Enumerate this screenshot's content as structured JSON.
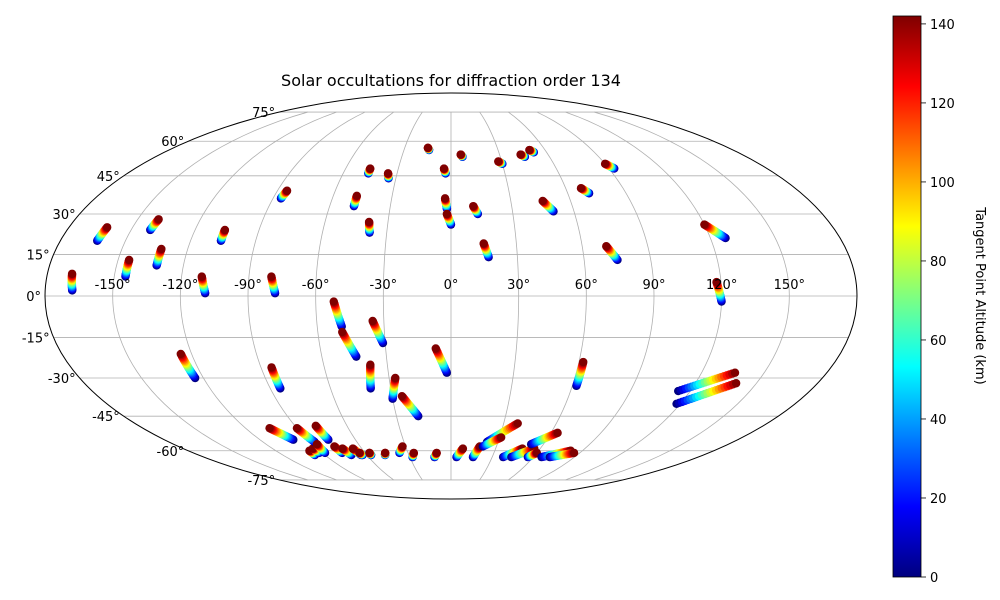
{
  "chart_data": {
    "type": "scatter",
    "projection": "Mollweide (Hammer-style)",
    "title": "Solar occultations for diffraction order 134",
    "grid": true,
    "lon_ticks": [
      -150,
      -120,
      -90,
      -60,
      -30,
      0,
      30,
      60,
      90,
      120,
      150
    ],
    "lon_tick_labels": [
      "-150°",
      "-120°",
      "-90°",
      "-60°",
      "-30°",
      "0°",
      "30°",
      "60°",
      "90°",
      "120°",
      "150°"
    ],
    "lat_ticks": [
      75,
      60,
      45,
      30,
      15,
      0,
      -15,
      -30,
      -45,
      -60,
      -75
    ],
    "lat_tick_labels": [
      "75°",
      "60°",
      "45°",
      "30°",
      "15°",
      "0°",
      "-15°",
      "-30°",
      "-45°",
      "-60°",
      "-75°"
    ],
    "colorbar": {
      "label": "Tangent Point Altitude (km)",
      "colormap": "jet",
      "min": 0,
      "max": 142,
      "ticks": [
        0,
        20,
        40,
        60,
        80,
        100,
        120,
        140
      ],
      "tick_labels": [
        "0",
        "20",
        "40",
        "60",
        "80",
        "100",
        "120",
        "140"
      ]
    },
    "altitude_range_km": [
      0,
      142
    ],
    "occultations": [
      {
        "lon_start": -169,
        "lat_start": 8,
        "lon_end": -168,
        "lat_end": 2
      },
      {
        "lon_start": -162,
        "lat_start": 25,
        "lon_end": -163,
        "lat_end": 20
      },
      {
        "lon_start": -145,
        "lat_start": 13,
        "lon_end": -145,
        "lat_end": 7
      },
      {
        "lon_start": -140,
        "lat_start": 28,
        "lon_end": -141,
        "lat_end": 24
      },
      {
        "lon_start": -132,
        "lat_start": 17,
        "lon_end": -132,
        "lat_end": 11
      },
      {
        "lon_start": -125,
        "lat_start": -21,
        "lon_end": -124,
        "lat_end": -30
      },
      {
        "lon_start": -111,
        "lat_start": 7,
        "lon_end": -109,
        "lat_end": 1
      },
      {
        "lon_start": -106,
        "lat_start": 24,
        "lon_end": -106,
        "lat_end": 20
      },
      {
        "lon_start": -85,
        "lat_start": -26,
        "lon_end": -85,
        "lat_end": -34
      },
      {
        "lon_start": -85,
        "lat_start": 39,
        "lon_end": -86,
        "lat_end": 36
      },
      {
        "lon_start": -80,
        "lat_start": 7,
        "lon_end": -78,
        "lat_end": 1
      },
      {
        "lon_start": -48,
        "lat_start": 37,
        "lon_end": -48,
        "lat_end": 33
      },
      {
        "lon_start": -46,
        "lat_start": 48,
        "lon_end": -46,
        "lat_end": 46
      },
      {
        "lon_start": -52,
        "lat_start": -2,
        "lon_end": -49,
        "lat_end": -11
      },
      {
        "lon_start": -49,
        "lat_start": -13,
        "lon_end": -44,
        "lat_end": -22
      },
      {
        "lon_start": -38,
        "lat_start": -25,
        "lon_end": -40,
        "lat_end": -34
      },
      {
        "lon_start": -39,
        "lat_start": 27,
        "lon_end": -38,
        "lat_end": 23
      },
      {
        "lon_start": -35,
        "lat_start": 46,
        "lon_end": -34,
        "lat_end": 44
      },
      {
        "lon_start": -35,
        "lat_start": -9,
        "lon_end": -31,
        "lat_end": -17
      },
      {
        "lon_start": -27,
        "lat_start": -30,
        "lon_end": -30,
        "lat_end": -38
      },
      {
        "lon_start": -25,
        "lat_start": -37,
        "lon_end": -18,
        "lat_end": -45
      },
      {
        "lon_start": -15,
        "lat_start": 57,
        "lon_end": -14,
        "lat_end": 56
      },
      {
        "lon_start": -4,
        "lat_start": 48,
        "lon_end": -3,
        "lat_end": 46
      },
      {
        "lon_start": -3,
        "lat_start": 36,
        "lon_end": -2,
        "lat_end": 32
      },
      {
        "lon_start": -2,
        "lat_start": 30,
        "lon_end": 0,
        "lat_end": 26
      },
      {
        "lon_start": -7,
        "lat_start": -19,
        "lon_end": -2,
        "lat_end": -28
      },
      {
        "lon_start": 6,
        "lat_start": 54,
        "lon_end": 7,
        "lat_end": 53
      },
      {
        "lon_start": 11,
        "lat_start": 33,
        "lon_end": 13,
        "lat_end": 30
      },
      {
        "lon_start": 15,
        "lat_start": 19,
        "lon_end": 17,
        "lat_end": 14
      },
      {
        "lon_start": 28,
        "lat_start": 51,
        "lon_end": 30,
        "lat_end": 50
      },
      {
        "lon_start": 43,
        "lat_start": 54,
        "lon_end": 45,
        "lat_end": 53
      },
      {
        "lon_start": 50,
        "lat_start": 56,
        "lon_end": 52,
        "lat_end": 55
      },
      {
        "lon_start": 46,
        "lat_start": 35,
        "lon_end": 50,
        "lat_end": 31
      },
      {
        "lon_start": 62,
        "lat_start": -24,
        "lon_end": 62,
        "lat_end": -33
      },
      {
        "lon_start": 68,
        "lat_start": 40,
        "lon_end": 71,
        "lat_end": 38
      },
      {
        "lon_start": 71,
        "lat_start": 18,
        "lon_end": 75,
        "lat_end": 13
      },
      {
        "lon_start": 90,
        "lat_start": 50,
        "lon_end": 93,
        "lat_end": 48
      },
      {
        "lon_start": 118,
        "lat_start": 5,
        "lon_end": 120,
        "lat_end": -2
      },
      {
        "lon_start": 120,
        "lat_start": 26,
        "lon_end": 127,
        "lat_end": 21
      },
      {
        "lon_start": 136,
        "lat_start": -28,
        "lon_end": 114,
        "lat_end": -35
      },
      {
        "lon_start": 140,
        "lat_start": -32,
        "lon_end": 118,
        "lat_end": -40
      },
      {
        "lon_start": -106,
        "lat_start": -50,
        "lon_end": -99,
        "lat_end": -55
      },
      {
        "lon_start": -97,
        "lat_start": -60,
        "lon_end": -97,
        "lat_end": -62
      },
      {
        "lon_start": -93,
        "lat_start": -59,
        "lon_end": -92,
        "lat_end": -61
      },
      {
        "lon_start": -90,
        "lat_start": -50,
        "lon_end": -87,
        "lat_end": -56
      },
      {
        "lon_start": -87,
        "lat_start": -57,
        "lon_end": -88,
        "lat_end": -61
      },
      {
        "lon_start": -78,
        "lat_start": -49,
        "lon_end": -77,
        "lat_end": -55
      },
      {
        "lon_start": -77,
        "lat_start": -58,
        "lon_end": -76,
        "lat_end": -61
      },
      {
        "lon_start": -73,
        "lat_start": -59,
        "lon_end": -71,
        "lat_end": -62
      },
      {
        "lon_start": -66,
        "lat_start": -59,
        "lon_end": -64,
        "lat_end": -62
      },
      {
        "lon_start": -64,
        "lat_start": -61,
        "lon_end": -63,
        "lat_end": -62
      },
      {
        "lon_start": -57,
        "lat_start": -61,
        "lon_end": -57,
        "lat_end": -62
      },
      {
        "lon_start": -46,
        "lat_start": -61,
        "lon_end": -47,
        "lat_end": -62
      },
      {
        "lon_start": -32,
        "lat_start": -58,
        "lon_end": -36,
        "lat_end": -61
      },
      {
        "lon_start": -26,
        "lat_start": -61,
        "lon_end": -28,
        "lat_end": -63
      },
      {
        "lon_start": -10,
        "lat_start": -61,
        "lon_end": -12,
        "lat_end": -63
      },
      {
        "lon_start": 8,
        "lat_start": -59,
        "lon_end": 4,
        "lat_end": -63
      },
      {
        "lon_start": 19,
        "lat_start": -58,
        "lon_end": 16,
        "lat_end": -63
      },
      {
        "lon_start": 38,
        "lat_start": -48,
        "lon_end": 23,
        "lat_end": -56
      },
      {
        "lon_start": 31,
        "lat_start": -54,
        "lon_end": 21,
        "lat_end": -58
      },
      {
        "lon_start": 48,
        "lat_start": -59,
        "lon_end": 38,
        "lat_end": -63
      },
      {
        "lon_start": 56,
        "lat_start": -59,
        "lon_end": 44,
        "lat_end": -63
      },
      {
        "lon_start": 64,
        "lat_start": -52,
        "lon_end": 52,
        "lat_end": -57
      },
      {
        "lon_start": 60,
        "lat_start": -61,
        "lon_end": 56,
        "lat_end": -63
      },
      {
        "lon_start": 82,
        "lat_start": -60,
        "lon_end": 66,
        "lat_end": -63
      },
      {
        "lon_start": 86,
        "lat_start": -61,
        "lon_end": 72,
        "lat_end": -63
      }
    ]
  }
}
